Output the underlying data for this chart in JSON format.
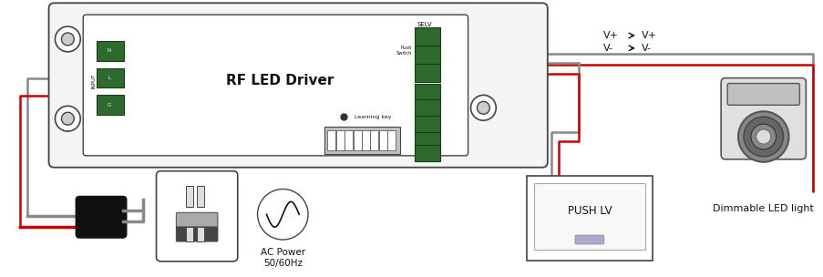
{
  "bg_color": "#ffffff",
  "wire_red": "#cc0000",
  "wire_gray": "#888888",
  "wire_black": "#111111",
  "border_color": "#444444",
  "green_color": "#2d6b2d",
  "text_color": "#111111",
  "driver_label": "RF LED Driver",
  "push_label": "PUSH LV",
  "led_label": "Dimmable LED light",
  "ac_label": "AC Power\n50/60Hz",
  "selv_label": "SELV",
  "learning_label": "Learning key",
  "vplus_text": "V+",
  "vminus_text": "V-",
  "arrow_text": "→"
}
